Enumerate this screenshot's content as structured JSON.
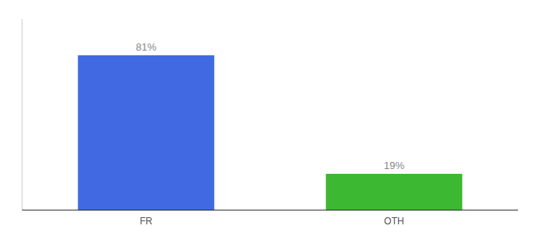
{
  "chart_data": {
    "type": "bar",
    "categories": [
      "FR",
      "OTH"
    ],
    "values": [
      81,
      19
    ],
    "value_labels": [
      "81%",
      "19%"
    ],
    "colors": [
      "#4169e1",
      "#3cb832"
    ],
    "ylim": [
      0,
      100
    ],
    "yticks": [],
    "grid": false,
    "tick_labels": "x",
    "data_labels": true
  }
}
